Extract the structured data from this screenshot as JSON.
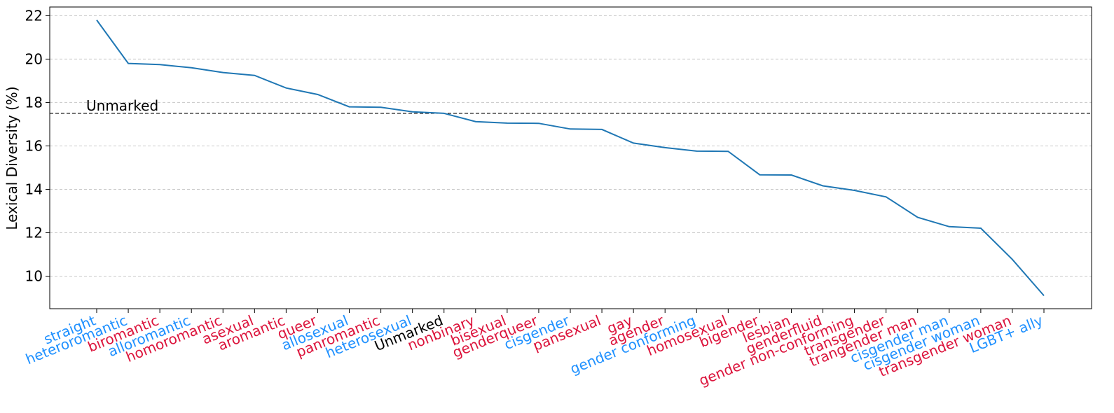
{
  "chart_data": {
    "type": "line",
    "ylabel": "Lexical Diversity (%)",
    "xlabel": "",
    "ylim": [
      8.5,
      22.4
    ],
    "yticks": [
      10,
      12,
      14,
      16,
      18,
      20,
      22
    ],
    "grid": "horizontal dashed",
    "colors": {
      "line": "#1f77b4",
      "blue_label": "#1e90ff",
      "red_label": "#dc143c",
      "black_label": "#000000",
      "grid": "#c8c8c8"
    },
    "reference_line": {
      "label": "Unmarked",
      "value": 17.5
    },
    "categories": [
      "straight",
      "heteroromantic",
      "biromantic",
      "alloromantic",
      "homoromantic",
      "asexual",
      "aromantic",
      "queer",
      "allosexual",
      "panromantic",
      "heterosexual",
      "Unmarked",
      "nonbinary",
      "bisexual",
      "genderqueer",
      "cisgender",
      "pansexual",
      "gay",
      "agender",
      "gender conforming",
      "homosexual",
      "bigender",
      "lesbian",
      "genderfluid",
      "gender non-conforming",
      "transgender",
      "trangender man",
      "cisgender man",
      "cisgender woman",
      "transgender woman",
      "LGBT+ ally"
    ],
    "label_colors": [
      "blue",
      "blue",
      "red",
      "blue",
      "red",
      "red",
      "red",
      "red",
      "blue",
      "red",
      "blue",
      "black",
      "red",
      "red",
      "red",
      "blue",
      "red",
      "red",
      "red",
      "blue",
      "red",
      "red",
      "red",
      "red",
      "red",
      "red",
      "red",
      "blue",
      "blue",
      "red",
      "blue"
    ],
    "values": [
      21.8,
      19.8,
      19.75,
      19.6,
      19.38,
      19.25,
      18.67,
      18.37,
      17.8,
      17.78,
      17.57,
      17.5,
      17.12,
      17.05,
      17.04,
      16.78,
      16.76,
      16.13,
      15.92,
      15.76,
      15.75,
      14.67,
      14.66,
      14.16,
      13.95,
      13.65,
      12.71,
      12.28,
      12.21,
      10.77,
      9.1
    ]
  }
}
